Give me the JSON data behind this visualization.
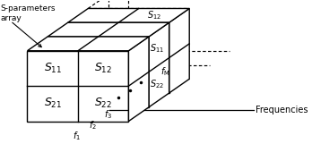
{
  "bg_color": "#ffffff",
  "line_color": "#000000",
  "label_s_params_array": "S-parameters\narray",
  "label_frequencies": "Frequencies",
  "label_fM": "$f_\\mathrm{M}$",
  "label_f1": "$f_1$",
  "label_f2": "$f_2$",
  "label_f3": "$f_3$",
  "cell_labels": {
    "S11": "$S_{11}$",
    "S12": "$S_{12}$",
    "S21": "$S_{21}$",
    "S22": "$S_{22}$"
  },
  "fx0": 0.95,
  "fy0": 0.55,
  "fw": 3.6,
  "fh": 2.6,
  "ddx": 0.72,
  "ddy": 0.52,
  "n_solid_slices": 3,
  "n_dashed_extra": 2
}
